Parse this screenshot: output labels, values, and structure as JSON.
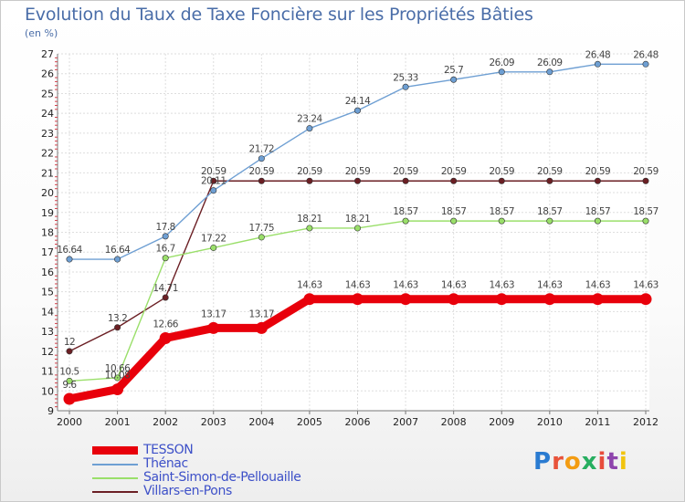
{
  "title": "Evolution du Taux de Taxe Foncière sur les Propriétés Bâties",
  "unit_label": "(en %)",
  "logo_text": "Proxiti",
  "logo_colors": [
    "#2a7bd1",
    "#e8533a",
    "#f39c12",
    "#27ae60",
    "#e74c3c",
    "#8e44ad",
    "#f1c40f"
  ],
  "chart_data": {
    "type": "line",
    "x": [
      "2000",
      "2001",
      "2002",
      "2003",
      "2004",
      "2005",
      "2006",
      "2007",
      "2008",
      "2009",
      "2010",
      "2011",
      "2012"
    ],
    "ylim": [
      9,
      27
    ],
    "yticks": [
      9,
      10,
      11,
      12,
      13,
      14,
      15,
      16,
      17,
      18,
      19,
      20,
      21,
      22,
      23,
      24,
      25,
      26,
      27
    ],
    "grid": true,
    "legend_position": "bottom-left",
    "series": [
      {
        "name": "TESSON",
        "color": "#e8000b",
        "values": [
          9.6,
          10.08,
          12.66,
          13.17,
          13.17,
          14.63,
          14.63,
          14.63,
          14.63,
          14.63,
          14.63,
          14.63,
          14.63
        ],
        "labels": [
          "9.6",
          "10.08",
          "12.66",
          "13.17",
          "13.17",
          "14.63",
          "14.63",
          "14.63",
          "14.63",
          "14.63",
          "14.63",
          "14.63",
          "14.63"
        ]
      },
      {
        "name": "Thénac",
        "color": "#6e9fd3",
        "values": [
          16.64,
          16.64,
          17.8,
          20.11,
          21.72,
          23.24,
          24.14,
          25.33,
          25.7,
          26.09,
          26.09,
          26.48,
          26.48
        ],
        "labels": [
          "16.64",
          "16.64",
          "17.8",
          "20.11",
          "21.72",
          "23.24",
          "24.14",
          "25.33",
          "25.7",
          "26.09",
          "26.09",
          "26.48",
          "26.48"
        ]
      },
      {
        "name": "Saint-Simon-de-Pellouaille",
        "color": "#9adf6a",
        "values": [
          10.5,
          10.66,
          16.7,
          17.22,
          17.75,
          18.21,
          18.21,
          18.57,
          18.57,
          18.57,
          18.57,
          18.57,
          18.57
        ],
        "labels": [
          "10.5",
          "10.66",
          "16.7",
          "17.22",
          "17.75",
          "18.21",
          "18.21",
          "18.57",
          "18.57",
          "18.57",
          "18.57",
          "18.57",
          "18.57"
        ]
      },
      {
        "name": "Villars-en-Pons",
        "color": "#6b1f24",
        "values": [
          12,
          13.2,
          14.71,
          20.59,
          20.59,
          20.59,
          20.59,
          20.59,
          20.59,
          20.59,
          20.59,
          20.59,
          20.59
        ],
        "labels": [
          "12",
          "13.2",
          "14.71",
          "20.59",
          "20.59",
          "20.59",
          "20.59",
          "20.59",
          "20.59",
          "20.59",
          "20.59",
          "20.59",
          "20.59"
        ]
      }
    ]
  }
}
